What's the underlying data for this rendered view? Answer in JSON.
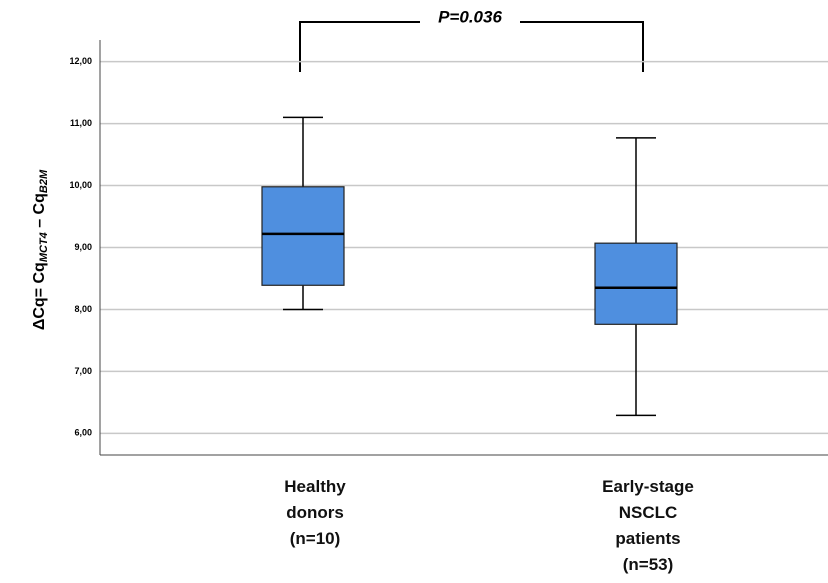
{
  "chart_data": {
    "type": "boxplot",
    "ylabel": [
      "ΔCq= Cq",
      "MCT4",
      " – Cq",
      "B2M"
    ],
    "annotation": "P=0.036",
    "categories": [
      "Healthy\ndonors\n(n=10)",
      "Early-stage\nNSCLC\npatients\n(n=53)"
    ],
    "boxes": [
      {
        "min": 8.0,
        "q1": 8.39,
        "median": 9.22,
        "q3": 9.98,
        "max": 11.1
      },
      {
        "min": 6.29,
        "q1": 7.76,
        "median": 8.35,
        "q3": 9.07,
        "max": 10.77
      }
    ],
    "color": "#4f8fdf",
    "ylim": [
      5.65,
      12.35
    ],
    "yticks": [
      {
        "value": 6,
        "label": "6,00"
      },
      {
        "value": 7,
        "label": "7,00"
      },
      {
        "value": 8,
        "label": "8,00"
      },
      {
        "value": 9,
        "label": "9,00"
      },
      {
        "value": 10,
        "label": "10,00"
      },
      {
        "value": 11,
        "label": "11,00"
      },
      {
        "value": 12,
        "label": "12,00"
      }
    ],
    "grid": true
  }
}
